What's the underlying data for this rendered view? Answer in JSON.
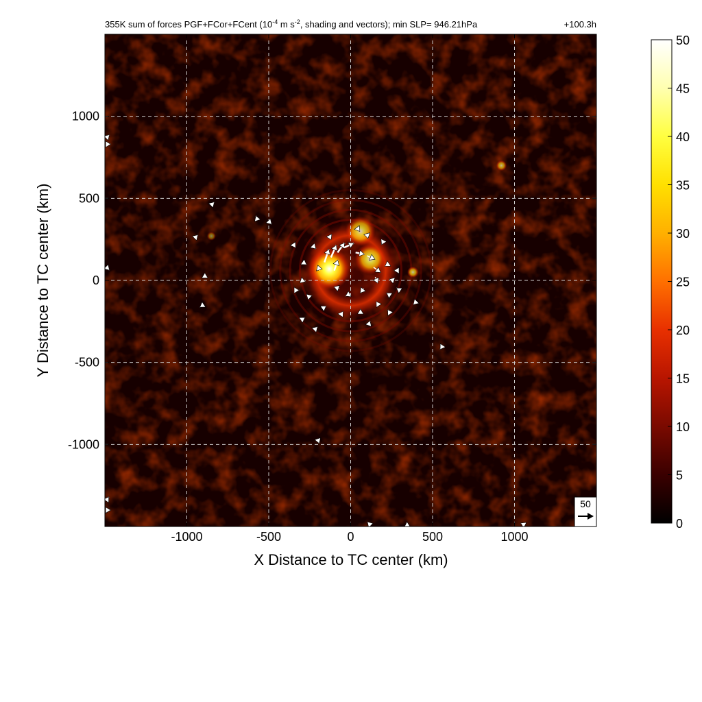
{
  "chart_data": {
    "type": "heatmap",
    "title": "355K sum of forces PGF+FCor+FCent (10",
    "title_exp1": "-4",
    "title_mid": " m s",
    "title_exp2": "-2",
    "title_end": ", shading and vectors); min SLP= 946.21hPa",
    "forecast_time": "+100.3h",
    "xlabel": "X Distance to TC center (km)",
    "ylabel": "Y Distance to TC center (km)",
    "xlim": [
      -1500,
      1500
    ],
    "ylim": [
      -1500,
      1500
    ],
    "xticks": [
      -1000,
      -500,
      0,
      500,
      1000
    ],
    "xtick_labels": [
      "-1000",
      "-500",
      "0",
      "500",
      "1000"
    ],
    "yticks": [
      -1000,
      -500,
      0,
      500,
      1000
    ],
    "ytick_labels": [
      "-1000",
      "-500",
      "0",
      "500",
      "1000"
    ],
    "grid": true,
    "colorbar": {
      "min": 0,
      "max": 50,
      "ticks": [
        0,
        5,
        10,
        15,
        20,
        25,
        30,
        35,
        40,
        45,
        50
      ],
      "tick_labels": [
        "0",
        "5",
        "10",
        "15",
        "20",
        "25",
        "30",
        "35",
        "40",
        "45",
        "50"
      ],
      "colormap": [
        "#000000",
        "#3a0000",
        "#7a0a00",
        "#b81500",
        "#e83000",
        "#ff7000",
        "#ffb000",
        "#ffe000",
        "#ffff40",
        "#ffffb0",
        "#ffffff"
      ]
    },
    "vector_reference": {
      "label": "50",
      "magnitude": 50
    },
    "field_features": [
      {
        "kind": "eyewall_ring",
        "x": 0,
        "y": 60,
        "radius": 220,
        "value": 22
      },
      {
        "kind": "max_core",
        "x": -130,
        "y": 70,
        "value": 48
      },
      {
        "kind": "max_core",
        "x": 60,
        "y": 300,
        "value": 30
      },
      {
        "kind": "max_core",
        "x": 120,
        "y": 130,
        "value": 32
      },
      {
        "kind": "spot",
        "x": 380,
        "y": 50,
        "value": 28
      },
      {
        "kind": "spot",
        "x": 920,
        "y": 700,
        "value": 25
      },
      {
        "kind": "spot",
        "x": -850,
        "y": 270,
        "value": 18
      }
    ],
    "vectors": [
      {
        "x": -160,
        "y": 110,
        "u": 10,
        "v": 30
      },
      {
        "x": -120,
        "y": 140,
        "u": 12,
        "v": 28
      },
      {
        "x": -80,
        "y": 170,
        "u": 16,
        "v": 22
      },
      {
        "x": -40,
        "y": 200,
        "u": 22,
        "v": 10
      },
      {
        "x": 30,
        "y": 170,
        "u": 20,
        "v": -4
      },
      {
        "x": 100,
        "y": 150,
        "u": 18,
        "v": -8
      },
      {
        "x": 140,
        "y": 80,
        "u": 16,
        "v": -12
      },
      {
        "x": 150,
        "y": 20,
        "u": 6,
        "v": -14
      },
      {
        "x": 80,
        "y": -50,
        "u": -8,
        "v": -10
      },
      {
        "x": 0,
        "y": -80,
        "u": -12,
        "v": -6
      },
      {
        "x": -70,
        "y": -50,
        "u": -12,
        "v": 4
      },
      {
        "x": -190,
        "y": 60,
        "u": -4,
        "v": 12
      },
      {
        "x": -100,
        "y": 60,
        "u": 8,
        "v": 24
      },
      {
        "x": 40,
        "y": 320,
        "u": 6,
        "v": -8
      },
      {
        "x": 100,
        "y": 280,
        "u": 2,
        "v": -8
      },
      {
        "x": 200,
        "y": 240,
        "u": -4,
        "v": -8
      },
      {
        "x": 230,
        "y": 100,
        "u": -6,
        "v": -4
      },
      {
        "x": 260,
        "y": 0,
        "u": -6,
        "v": 2
      },
      {
        "x": 240,
        "y": -90,
        "u": -6,
        "v": 4
      },
      {
        "x": 170,
        "y": -150,
        "u": -4,
        "v": 6
      },
      {
        "x": 60,
        "y": -200,
        "u": 0,
        "v": 8
      },
      {
        "x": -60,
        "y": -210,
        "u": 4,
        "v": 6
      },
      {
        "x": -170,
        "y": -170,
        "u": 6,
        "v": 4
      },
      {
        "x": -260,
        "y": -100,
        "u": 6,
        "v": 2
      },
      {
        "x": -300,
        "y": 0,
        "u": 6,
        "v": -2
      },
      {
        "x": -290,
        "y": 110,
        "u": 6,
        "v": -4
      },
      {
        "x": -230,
        "y": 210,
        "u": 6,
        "v": -6
      },
      {
        "x": -130,
        "y": 270,
        "u": 4,
        "v": -8
      },
      {
        "x": -350,
        "y": 220,
        "u": 4,
        "v": -6
      },
      {
        "x": -340,
        "y": -60,
        "u": 6,
        "v": 0
      },
      {
        "x": -300,
        "y": -240,
        "u": 6,
        "v": 4
      },
      {
        "x": -220,
        "y": -300,
        "u": 6,
        "v": 6
      },
      {
        "x": 110,
        "y": -270,
        "u": 2,
        "v": 6
      },
      {
        "x": 240,
        "y": -200,
        "u": -4,
        "v": 6
      },
      {
        "x": 300,
        "y": -60,
        "u": -6,
        "v": 4
      },
      {
        "x": 290,
        "y": 60,
        "u": -6,
        "v": 0
      },
      {
        "x": 400,
        "y": -130,
        "u": -4,
        "v": -4
      },
      {
        "x": 560,
        "y": -400,
        "u": -4,
        "v": -6
      },
      {
        "x": -570,
        "y": 370,
        "u": -2,
        "v": 6
      },
      {
        "x": -500,
        "y": 360,
        "u": 4,
        "v": -4
      },
      {
        "x": -950,
        "y": 260,
        "u": 4,
        "v": 4
      },
      {
        "x": -900,
        "y": -150,
        "u": -6,
        "v": -4
      },
      {
        "x": -850,
        "y": 460,
        "u": 4,
        "v": 4
      },
      {
        "x": -890,
        "y": 20,
        "u": 0,
        "v": 6
      },
      {
        "x": -200,
        "y": -970,
        "u": 2,
        "v": -6
      },
      {
        "x": -1490,
        "y": 830,
        "u": 6,
        "v": 0
      },
      {
        "x": -1490,
        "y": 870,
        "u": 4,
        "v": 4
      },
      {
        "x": -1490,
        "y": 80,
        "u": 4,
        "v": -4
      },
      {
        "x": -1490,
        "y": -1400,
        "u": 8,
        "v": 0
      },
      {
        "x": -1490,
        "y": -1340,
        "u": 4,
        "v": 6
      },
      {
        "x": 120,
        "y": -1490,
        "u": -4,
        "v": 4
      },
      {
        "x": 340,
        "y": -1490,
        "u": 4,
        "v": -2
      },
      {
        "x": 1060,
        "y": -1490,
        "u": -4,
        "v": 2
      },
      {
        "x": 1480,
        "y": -1490,
        "u": 2,
        "v": 6
      }
    ]
  }
}
